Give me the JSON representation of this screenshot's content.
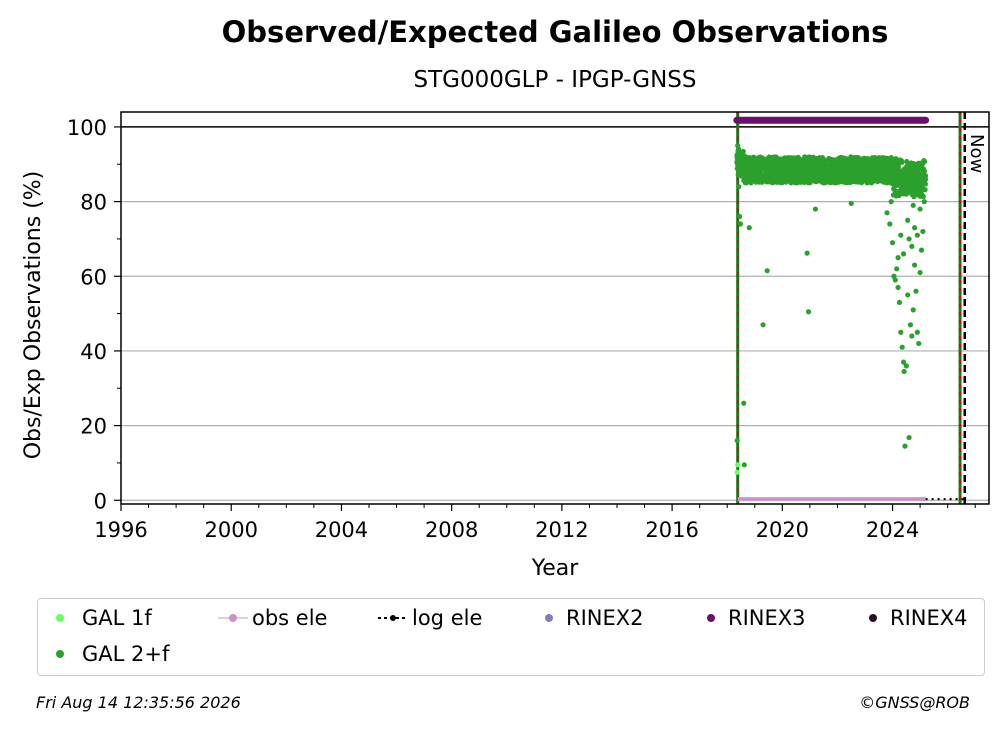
{
  "chart_data": {
    "type": "scatter",
    "title": "Observed/Expected Galileo Observations",
    "subtitle": "STG000GLP - IPGP-GNSS",
    "xlabel": "Year",
    "ylabel": "Obs/Exp Observations (%)",
    "xlim": [
      1996,
      2027.5
    ],
    "ylim": [
      -1,
      104
    ],
    "x_ticks": [
      1996,
      2000,
      2004,
      2008,
      2012,
      2016,
      2020,
      2024
    ],
    "y_ticks": [
      0,
      20,
      40,
      60,
      80,
      100
    ],
    "grid": "horizontal",
    "legend_placement": "below",
    "now_label": "Now",
    "now_year": 2026.62,
    "vertical_lines": [
      {
        "x": 2018.38,
        "style": "green-red-dashed"
      },
      {
        "x": 2026.45,
        "style": "green-red-dashed"
      },
      {
        "x": 2026.62,
        "style": "black-dashed"
      }
    ],
    "series": [
      {
        "name": "GAL 1f",
        "color": "#66ff66",
        "points": [
          [
            2018.36,
            7.5
          ],
          [
            2018.38,
            9.5
          ]
        ]
      },
      {
        "name": "GAL 2+f",
        "color": "#2ca02c",
        "dense_band": {
          "x_start": 2018.35,
          "x_end": 2025.2,
          "y_center": 88.5,
          "y_spread": 3.5
        },
        "points": [
          [
            2018.36,
            16
          ],
          [
            2018.38,
            95
          ],
          [
            2018.4,
            93
          ],
          [
            2018.42,
            84
          ],
          [
            2018.45,
            76
          ],
          [
            2018.48,
            74
          ],
          [
            2018.6,
            26
          ],
          [
            2018.62,
            9.5
          ],
          [
            2018.8,
            73
          ],
          [
            2019.3,
            47
          ],
          [
            2019.45,
            61.5
          ],
          [
            2020.9,
            66.2
          ],
          [
            2020.95,
            50.5
          ],
          [
            2021.2,
            78
          ],
          [
            2022.5,
            79.5
          ],
          [
            2023.8,
            77
          ],
          [
            2023.9,
            74
          ],
          [
            2024.0,
            69
          ],
          [
            2024.05,
            60
          ],
          [
            2024.1,
            59
          ],
          [
            2024.2,
            57
          ],
          [
            2024.25,
            53
          ],
          [
            2024.3,
            45
          ],
          [
            2024.35,
            41
          ],
          [
            2024.4,
            37
          ],
          [
            2024.42,
            34.5
          ],
          [
            2024.45,
            14.5
          ],
          [
            2024.5,
            36
          ],
          [
            2024.55,
            55
          ],
          [
            2024.6,
            16.8
          ],
          [
            2024.65,
            47
          ],
          [
            2024.7,
            44
          ],
          [
            2024.75,
            51
          ],
          [
            2024.8,
            63
          ],
          [
            2024.85,
            56
          ],
          [
            2024.9,
            45
          ],
          [
            2024.95,
            42
          ],
          [
            2025.0,
            61
          ],
          [
            2025.05,
            67
          ],
          [
            2025.1,
            72
          ],
          [
            2025.15,
            80
          ],
          [
            2025.2,
            86
          ],
          [
            2024.55,
            75
          ],
          [
            2024.6,
            70
          ],
          [
            2024.7,
            68
          ],
          [
            2024.8,
            73
          ],
          [
            2024.9,
            71
          ],
          [
            2025.0,
            78
          ],
          [
            2024.4,
            66
          ],
          [
            2024.3,
            71
          ],
          [
            2024.2,
            65
          ],
          [
            2024.15,
            62
          ],
          [
            2023.95,
            80
          ],
          [
            2024.5,
            82
          ],
          [
            2024.75,
            79
          ]
        ]
      },
      {
        "name": "obs ele",
        "color": "#c994c7",
        "range": [
          2018.38,
          2025.2
        ],
        "y": 0.3
      },
      {
        "name": "log ele",
        "color": "#000000",
        "range": [
          2025.2,
          2026.62
        ],
        "y": 0.3
      },
      {
        "name": "RINEX2",
        "color": "#807dba"
      },
      {
        "name": "RINEX3",
        "color": "#6a0f6a",
        "range": [
          2018.35,
          2025.2
        ],
        "y": 101.8
      },
      {
        "name": "RINEX4",
        "color": "#2d0a24"
      }
    ]
  },
  "footer": {
    "timestamp": "Fri Aug 14 12:35:56 2026",
    "credit": "©GNSS@ROB"
  }
}
